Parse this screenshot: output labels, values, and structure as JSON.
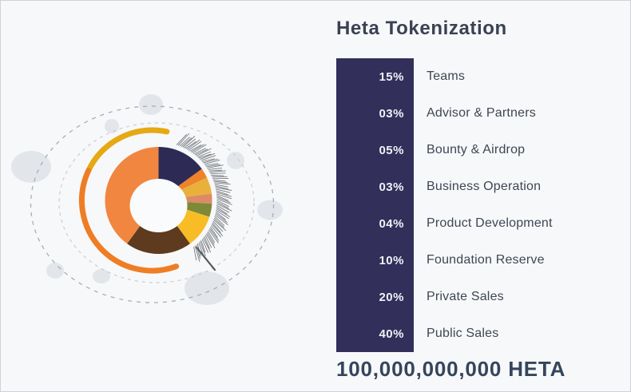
{
  "page": {
    "background": "#f7f8fa"
  },
  "panel": {
    "title": "Heta Tokenization",
    "total_supply": "100,000,000,000 HETA"
  },
  "chart_data": {
    "type": "pie",
    "donut": true,
    "title": "Heta Tokenization",
    "direction": "clockwise",
    "start_angle_deg": 0,
    "legend_position": "right",
    "categories": [
      "Teams",
      "Advisor & Partners",
      "Bounty & Airdrop",
      "Business Operation",
      "Product Development",
      "Foundation Reserve",
      "Private Sales",
      "Public Sales"
    ],
    "values": [
      15,
      3,
      5,
      3,
      4,
      10,
      20,
      40
    ],
    "percent_labels": [
      "15%",
      "03%",
      "05%",
      "03%",
      "04%",
      "10%",
      "20%",
      "40%"
    ],
    "colors": [
      "#2d2b56",
      "#ee8329",
      "#e9b13c",
      "#dd8a66",
      "#7c8a38",
      "#f8bd26",
      "#5e3a1f",
      "#f0863f"
    ],
    "unit": "%",
    "total_label": "100,000,000,000 HETA"
  },
  "art": {
    "arc_gold_color": "#e5a912",
    "arc_orange_color": "#ee7d24",
    "hatch_color": "#5f6468",
    "needle_color": "#565b60",
    "bubble_color": "#e2e6ea",
    "bar_color": "#322f5b",
    "hole_color": "#fafbfc"
  }
}
